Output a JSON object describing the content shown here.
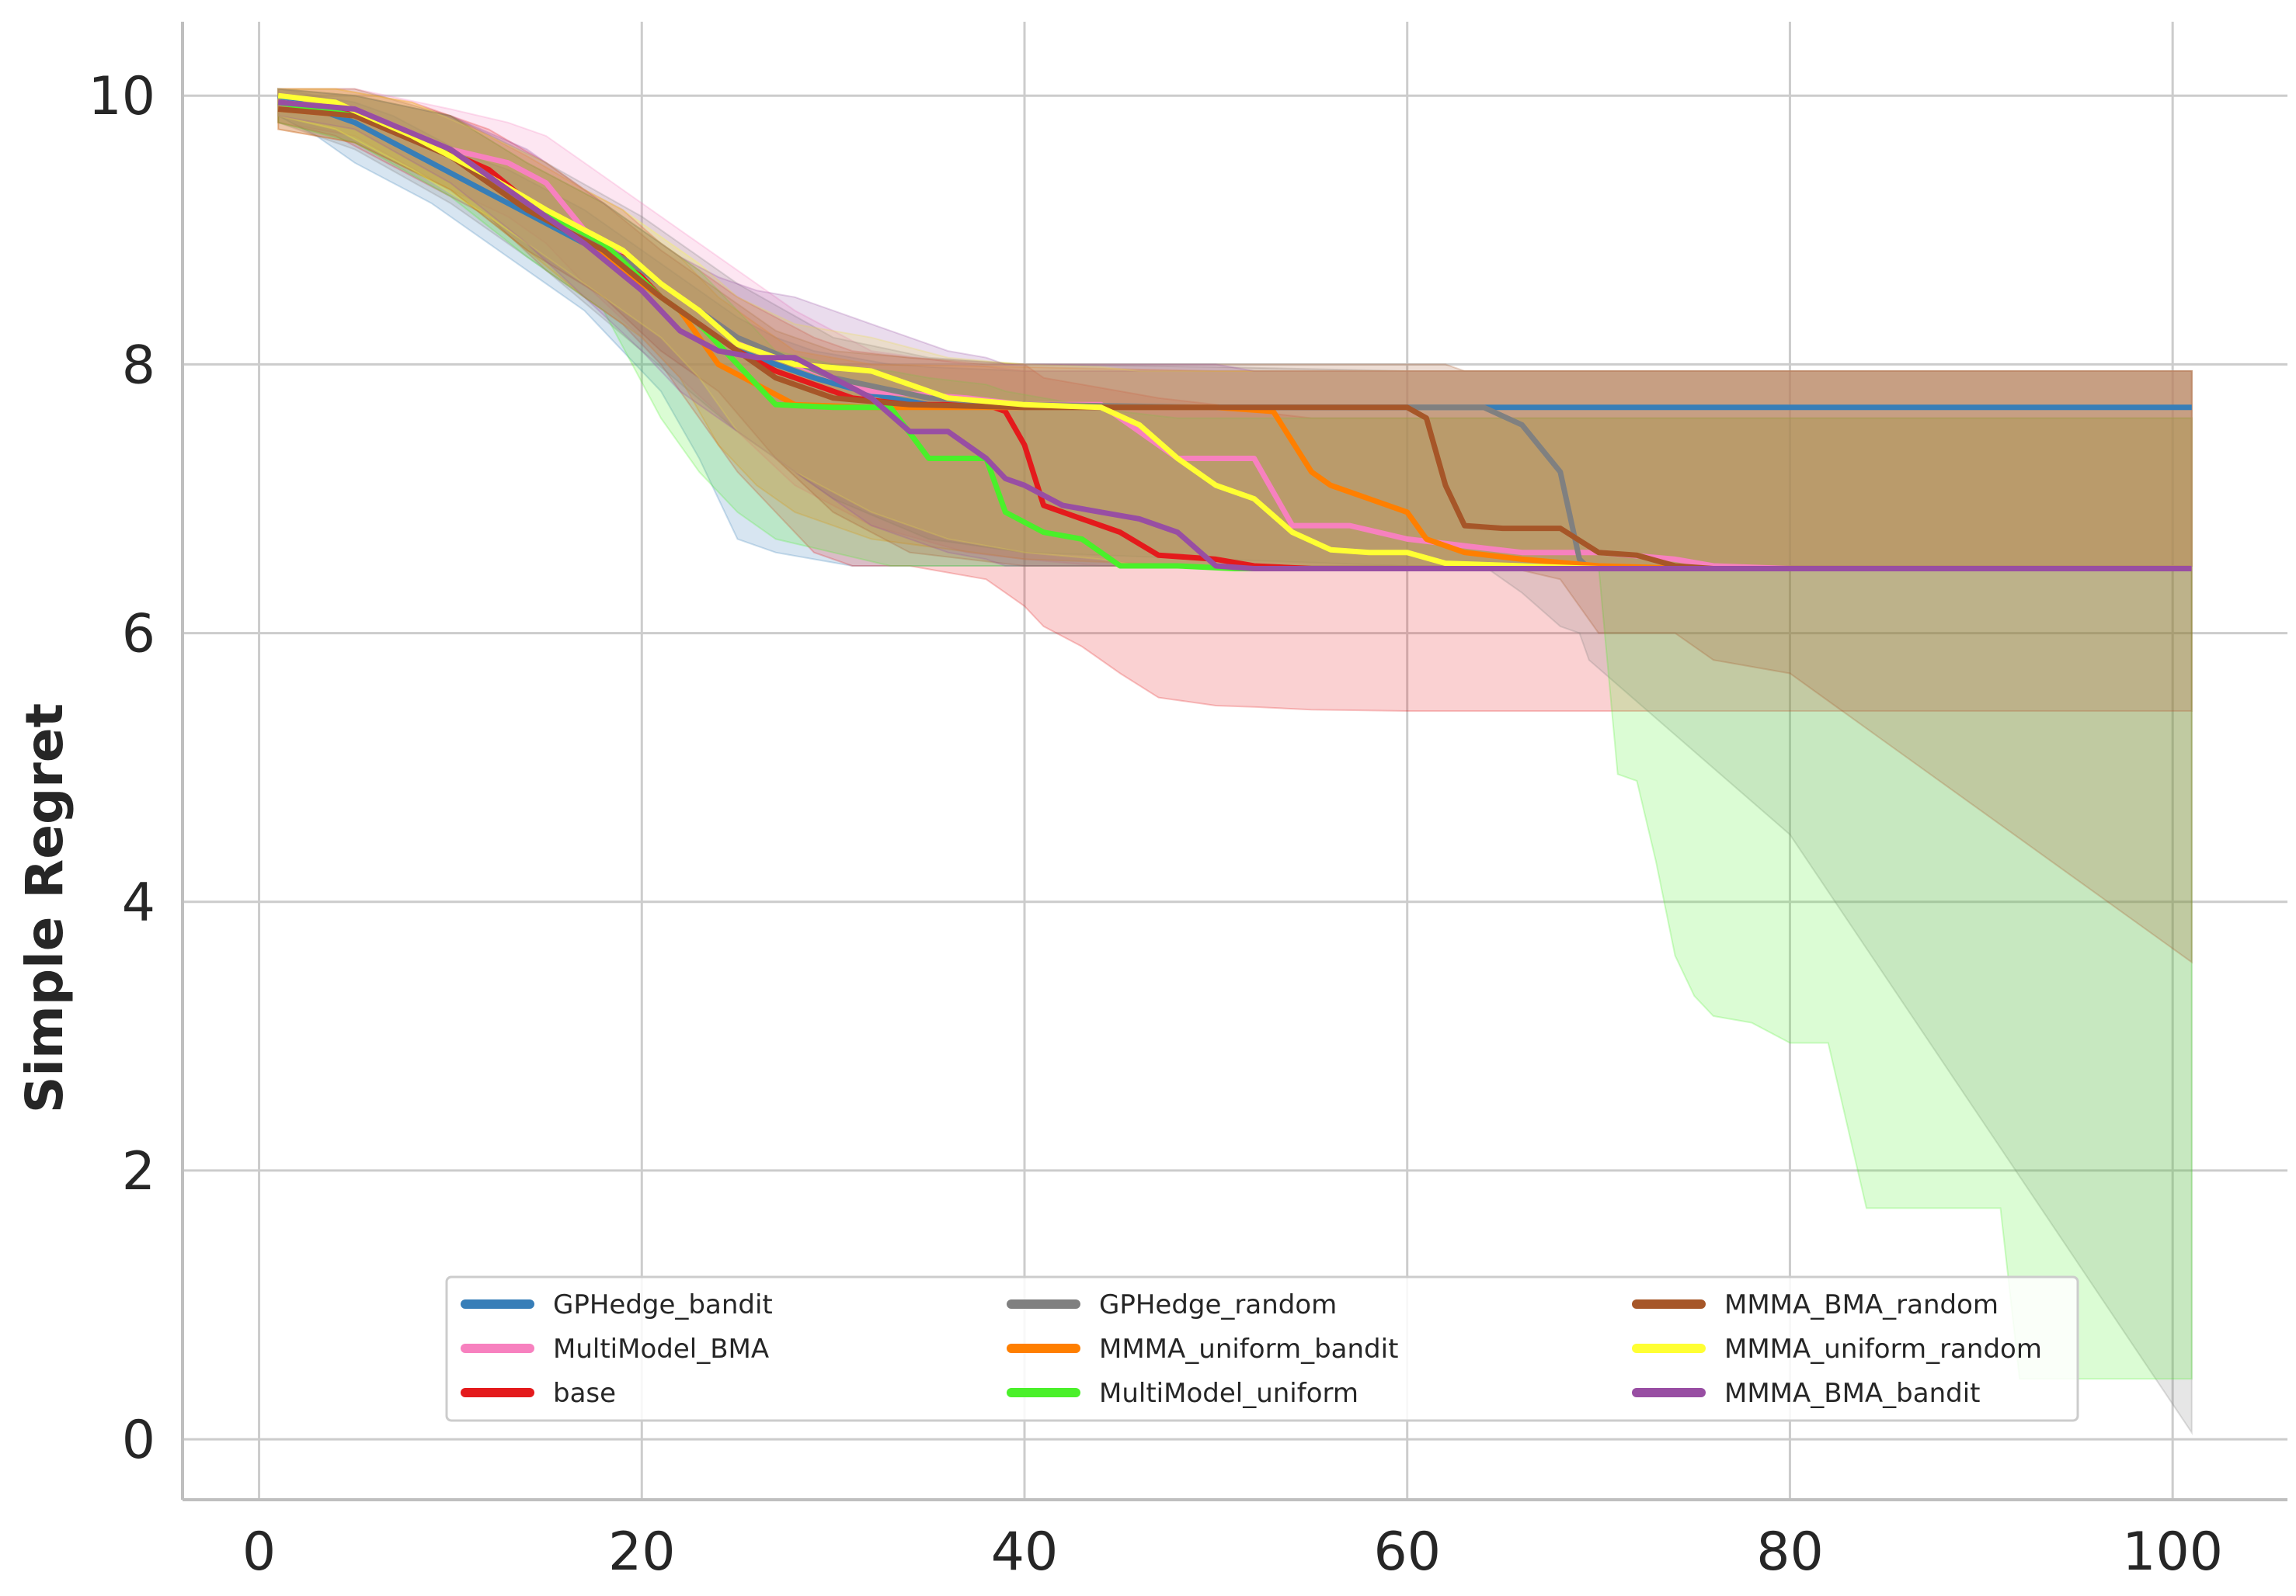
{
  "chart_data": {
    "type": "line",
    "title": "",
    "xlabel": "",
    "ylabel": "Simple Regret",
    "xlim": [
      -4,
      106
    ],
    "ylim": [
      -0.45,
      10.55
    ],
    "xticks": [
      0,
      20,
      40,
      60,
      80,
      100
    ],
    "yticks": [
      0,
      2,
      4,
      6,
      8,
      10
    ],
    "xtick_labels": [
      "0",
      "20",
      "40",
      "60",
      "80",
      "100"
    ],
    "ytick_labels": [
      "0",
      "2",
      "4",
      "6",
      "8",
      "10"
    ],
    "grid": true,
    "legend_position": "lower center",
    "legend_columns": 3,
    "series": [
      {
        "name": "GPHedge_bandit",
        "color": "#377eb8",
        "x": [
          1,
          3,
          5,
          7,
          9,
          11,
          13,
          15,
          17,
          19,
          21,
          23,
          25,
          27,
          29,
          31,
          33,
          35,
          40,
          60,
          80,
          101
        ],
        "y": [
          10.0,
          9.9,
          9.8,
          9.65,
          9.5,
          9.35,
          9.2,
          9.05,
          8.9,
          8.7,
          8.5,
          8.3,
          8.1,
          8.0,
          7.9,
          7.82,
          7.75,
          7.7,
          7.68,
          7.68,
          7.68,
          7.68
        ],
        "upper": [
          10.05,
          10.0,
          9.95,
          9.85,
          9.7,
          9.55,
          9.45,
          9.3,
          9.15,
          8.95,
          8.75,
          8.55,
          8.35,
          8.2,
          8.1,
          8.05,
          8.0,
          7.98,
          7.95,
          7.95,
          7.95,
          7.95
        ],
        "lower": [
          9.85,
          9.7,
          9.5,
          9.35,
          9.2,
          9.0,
          8.8,
          8.6,
          8.4,
          8.1,
          7.8,
          7.3,
          6.7,
          6.6,
          6.55,
          6.5,
          6.5,
          6.5,
          6.5,
          6.5,
          6.5,
          6.5
        ]
      },
      {
        "name": "MultiModel_BMA",
        "color": "#f781bf",
        "x": [
          1,
          5,
          10,
          13,
          15,
          17,
          20,
          22,
          25,
          28,
          32,
          37,
          40,
          44,
          46,
          48,
          50,
          52,
          54,
          57,
          60,
          63,
          66,
          70,
          74,
          76,
          80,
          101
        ],
        "y": [
          9.95,
          9.9,
          9.6,
          9.5,
          9.35,
          9.0,
          8.7,
          8.5,
          8.2,
          8.0,
          7.8,
          7.75,
          7.7,
          7.7,
          7.5,
          7.3,
          7.3,
          7.3,
          6.8,
          6.8,
          6.7,
          6.65,
          6.6,
          6.6,
          6.55,
          6.5,
          6.48,
          6.48
        ],
        "upper": [
          10.05,
          10.05,
          9.9,
          9.8,
          9.7,
          9.5,
          9.2,
          9.0,
          8.7,
          8.4,
          8.1,
          8.0,
          7.95,
          7.95,
          7.95,
          7.95,
          7.95,
          7.95,
          7.95,
          7.95,
          7.95,
          7.95,
          7.95,
          7.95,
          7.95,
          7.95,
          7.95,
          7.95
        ],
        "lower": [
          9.8,
          9.7,
          9.3,
          9.1,
          8.9,
          8.6,
          8.2,
          7.9,
          7.5,
          7.1,
          6.8,
          6.6,
          6.55,
          6.5,
          6.5,
          6.5,
          6.5,
          6.5,
          6.5,
          6.5,
          6.5,
          6.5,
          6.5,
          6.5,
          6.5,
          6.5,
          6.5,
          6.5
        ]
      },
      {
        "name": "base",
        "color": "#e41a1c",
        "x": [
          1,
          4,
          8,
          12,
          15,
          17,
          19,
          21,
          23,
          25,
          27,
          29,
          31,
          34,
          38,
          39,
          40,
          41,
          43,
          45,
          47,
          50,
          52,
          55,
          60,
          80,
          101
        ],
        "y": [
          9.95,
          9.9,
          9.7,
          9.45,
          9.1,
          8.9,
          8.8,
          8.5,
          8.3,
          8.1,
          7.95,
          7.85,
          7.75,
          7.7,
          7.7,
          7.65,
          7.4,
          6.95,
          6.85,
          6.75,
          6.58,
          6.55,
          6.5,
          6.48,
          6.48,
          6.48,
          6.48
        ],
        "upper": [
          10.05,
          10.05,
          9.95,
          9.75,
          9.5,
          9.3,
          9.15,
          8.9,
          8.7,
          8.5,
          8.35,
          8.2,
          8.1,
          8.05,
          8.0,
          8.0,
          8.0,
          7.9,
          7.85,
          7.8,
          7.75,
          7.7,
          7.65,
          7.6,
          7.6,
          7.6,
          7.6
        ],
        "lower": [
          9.8,
          9.7,
          9.4,
          9.1,
          8.7,
          8.5,
          8.3,
          8.0,
          7.6,
          7.2,
          6.9,
          6.6,
          6.5,
          6.5,
          6.4,
          6.3,
          6.2,
          6.05,
          5.9,
          5.7,
          5.52,
          5.46,
          5.45,
          5.43,
          5.42,
          5.42,
          5.42
        ]
      },
      {
        "name": "GPHedge_random",
        "color": "#808080",
        "x": [
          1,
          5,
          10,
          15,
          20,
          25,
          30,
          35,
          40,
          50,
          60,
          64,
          66,
          68,
          69,
          69.5,
          80,
          101
        ],
        "y": [
          9.95,
          9.85,
          9.55,
          9.15,
          8.7,
          8.2,
          7.9,
          7.75,
          7.7,
          7.68,
          7.68,
          7.68,
          7.55,
          7.2,
          6.55,
          6.48,
          6.48,
          6.48
        ],
        "upper": [
          10.05,
          10.0,
          9.85,
          9.5,
          9.1,
          8.6,
          8.2,
          8.05,
          8.0,
          7.98,
          7.95,
          7.95,
          7.95,
          7.95,
          7.95,
          7.95,
          7.95,
          7.95
        ],
        "lower": [
          9.8,
          9.6,
          9.2,
          8.7,
          8.1,
          7.5,
          7.0,
          6.7,
          6.6,
          6.55,
          6.5,
          6.5,
          6.3,
          6.05,
          6.0,
          5.8,
          4.5,
          0.05
        ]
      },
      {
        "name": "MMMA_uniform_bandit",
        "color": "#ff7f00",
        "x": [
          1,
          5,
          10,
          14,
          17,
          20,
          22,
          24,
          26,
          28,
          32,
          40,
          50,
          53,
          55,
          56,
          58,
          60,
          61,
          63,
          66,
          70,
          75,
          80,
          101
        ],
        "y": [
          9.9,
          9.85,
          9.6,
          9.2,
          8.9,
          8.6,
          8.4,
          8.0,
          7.85,
          7.7,
          7.68,
          7.68,
          7.68,
          7.65,
          7.2,
          7.1,
          7.0,
          6.9,
          6.7,
          6.6,
          6.55,
          6.5,
          6.48,
          6.48,
          6.48
        ],
        "upper": [
          10.05,
          10.0,
          9.85,
          9.55,
          9.3,
          9.0,
          8.8,
          8.5,
          8.3,
          8.1,
          8.0,
          7.98,
          7.95,
          7.95,
          7.95,
          7.95,
          7.95,
          7.95,
          7.95,
          7.95,
          7.95,
          7.95,
          7.95,
          7.95,
          7.95
        ],
        "lower": [
          9.75,
          9.65,
          9.3,
          8.85,
          8.5,
          8.2,
          7.9,
          7.4,
          7.1,
          6.9,
          6.7,
          6.55,
          6.5,
          6.5,
          6.5,
          6.5,
          6.5,
          6.5,
          6.5,
          6.5,
          6.5,
          6.5,
          6.5,
          6.5,
          6.5
        ]
      },
      {
        "name": "MultiModel_uniform",
        "color": "#4af02a",
        "x": [
          1,
          5,
          10,
          14,
          18,
          21,
          23,
          25,
          27,
          30,
          33,
          35,
          38,
          39,
          41,
          43,
          45,
          48,
          51,
          60,
          101
        ],
        "y": [
          9.95,
          9.85,
          9.6,
          9.2,
          8.9,
          8.5,
          8.3,
          8.0,
          7.7,
          7.68,
          7.68,
          7.3,
          7.3,
          6.9,
          6.75,
          6.7,
          6.5,
          6.5,
          6.48,
          6.48,
          6.48
        ],
        "upper": [
          10.05,
          10.0,
          9.85,
          9.5,
          9.2,
          8.9,
          8.7,
          8.4,
          8.1,
          8.0,
          7.95,
          7.9,
          7.85,
          7.8,
          7.75,
          7.7,
          7.65,
          7.6,
          7.6,
          7.6,
          7.6
        ],
        "lower": [
          9.8,
          9.65,
          9.25,
          8.8,
          8.4,
          7.6,
          7.2,
          6.9,
          6.7,
          6.6,
          6.5,
          6.5,
          6.5,
          6.5,
          6.5,
          6.5,
          6.5,
          6.5,
          6.5,
          6.5,
          6.5
        ],
        "lower_late": {
          "x": [
            70,
            71,
            72,
            73,
            74,
            75,
            76,
            78,
            80,
            82,
            84,
            86,
            88,
            89,
            90,
            91,
            92,
            93,
            101
          ],
          "y": [
            6.5,
            4.95,
            4.9,
            4.3,
            3.6,
            3.3,
            3.15,
            3.1,
            2.95,
            2.95,
            1.72,
            1.72,
            1.72,
            1.72,
            1.72,
            1.72,
            0.45,
            0.45,
            0.45
          ]
        }
      },
      {
        "name": "MMMA_BMA_random",
        "color": "#a65628",
        "x": [
          1,
          5,
          10,
          14,
          18,
          21,
          24,
          27,
          30,
          34,
          40,
          50,
          60,
          61,
          62,
          63,
          65,
          68,
          70,
          72,
          74,
          76,
          80,
          101
        ],
        "y": [
          9.9,
          9.85,
          9.55,
          9.15,
          8.85,
          8.5,
          8.2,
          7.9,
          7.75,
          7.7,
          7.68,
          7.68,
          7.68,
          7.6,
          7.1,
          6.8,
          6.78,
          6.78,
          6.6,
          6.58,
          6.5,
          6.48,
          6.48,
          6.48
        ],
        "upper": [
          10.05,
          10.05,
          9.85,
          9.5,
          9.2,
          8.85,
          8.55,
          8.25,
          8.1,
          8.05,
          8.0,
          8.0,
          8.0,
          8.0,
          8.0,
          7.95,
          7.95,
          7.95,
          7.95,
          7.95,
          7.95,
          7.95,
          7.95,
          7.95
        ],
        "lower": [
          9.75,
          9.65,
          9.3,
          8.85,
          8.5,
          8.1,
          7.8,
          7.3,
          6.9,
          6.6,
          6.5,
          6.5,
          6.5,
          6.5,
          6.5,
          6.5,
          6.5,
          6.4,
          6.0,
          6.0,
          6.0,
          5.8,
          5.7,
          3.55
        ]
      },
      {
        "name": "MMMA_uniform_random",
        "color": "#ffff33",
        "x": [
          1,
          4,
          8,
          12,
          15,
          17,
          19,
          21,
          23,
          25,
          28,
          32,
          36,
          40,
          44,
          46,
          48,
          50,
          52,
          54,
          56,
          58,
          60,
          62,
          66,
          70,
          80,
          101
        ],
        "y": [
          10.0,
          9.95,
          9.7,
          9.4,
          9.15,
          9.0,
          8.85,
          8.6,
          8.4,
          8.15,
          8.0,
          7.95,
          7.75,
          7.7,
          7.68,
          7.55,
          7.3,
          7.1,
          7.0,
          6.75,
          6.62,
          6.6,
          6.6,
          6.52,
          6.5,
          6.48,
          6.48,
          6.48
        ],
        "upper": [
          10.05,
          10.05,
          9.95,
          9.7,
          9.5,
          9.3,
          9.15,
          8.95,
          8.75,
          8.5,
          8.3,
          8.2,
          8.05,
          8.0,
          7.98,
          7.95,
          7.95,
          7.95,
          7.95,
          7.95,
          7.95,
          7.95,
          7.95,
          7.95,
          7.95,
          7.95,
          7.95,
          7.95
        ],
        "lower": [
          9.85,
          9.75,
          9.45,
          9.1,
          8.8,
          8.6,
          8.4,
          8.2,
          7.9,
          7.5,
          7.2,
          6.9,
          6.7,
          6.6,
          6.55,
          6.5,
          6.5,
          6.5,
          6.5,
          6.5,
          6.5,
          6.5,
          6.5,
          6.5,
          6.5,
          6.5,
          6.5,
          6.5
        ]
      },
      {
        "name": "MMMA_BMA_bandit",
        "color": "#984ea3",
        "x": [
          1,
          5,
          10,
          14,
          17,
          20,
          22,
          24,
          26,
          28,
          30,
          32,
          34,
          36,
          38,
          39,
          40,
          42,
          44,
          46,
          48,
          50,
          52,
          56,
          60,
          80,
          101
        ],
        "y": [
          9.95,
          9.9,
          9.6,
          9.2,
          8.9,
          8.55,
          8.25,
          8.1,
          8.05,
          8.05,
          7.9,
          7.75,
          7.5,
          7.5,
          7.3,
          7.15,
          7.1,
          6.95,
          6.9,
          6.85,
          6.75,
          6.5,
          6.48,
          6.48,
          6.48,
          6.48,
          6.48
        ],
        "upper": [
          10.05,
          10.0,
          9.85,
          9.6,
          9.3,
          9.0,
          8.8,
          8.65,
          8.55,
          8.5,
          8.4,
          8.3,
          8.2,
          8.1,
          8.05,
          8.0,
          8.0,
          8.0,
          8.0,
          8.0,
          8.0,
          8.0,
          7.95,
          7.95,
          7.95,
          7.95,
          7.95
        ],
        "lower": [
          9.85,
          9.75,
          9.35,
          8.9,
          8.5,
          8.1,
          7.8,
          7.6,
          7.4,
          7.2,
          7.0,
          6.8,
          6.7,
          6.6,
          6.55,
          6.5,
          6.5,
          6.5,
          6.5,
          6.5,
          6.5,
          6.5,
          6.5,
          6.5,
          6.5,
          6.5,
          6.5
        ]
      }
    ],
    "legend": {
      "entries": [
        "GPHedge_bandit",
        "GPHedge_random",
        "MMMA_BMA_random",
        "MultiModel_BMA",
        "MMMA_uniform_bandit",
        "MMMA_uniform_random",
        "base",
        "MultiModel_uniform",
        "MMMA_BMA_bandit"
      ]
    }
  }
}
